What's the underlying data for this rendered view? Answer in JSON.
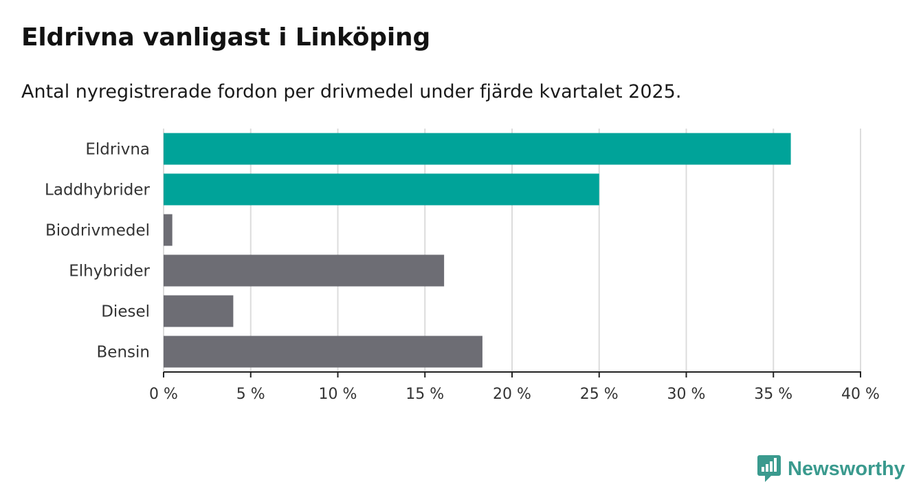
{
  "header": {
    "title": "Eldrivna vanligast i Linköping",
    "subtitle": "Antal nyregistrerade fordon per drivmedel under fjärde kvartalet 2025."
  },
  "chart_data": {
    "type": "bar",
    "orientation": "horizontal",
    "title": "Eldrivna vanligast i Linköping",
    "subtitle": "Antal nyregistrerade fordon per drivmedel under fjärde kvartalet 2025.",
    "categories": [
      "Eldrivna",
      "Laddhybrider",
      "Biodrivmedel",
      "Elhybrider",
      "Diesel",
      "Bensin"
    ],
    "values": [
      36.0,
      25.0,
      0.5,
      16.1,
      4.0,
      18.3
    ],
    "highlighted": [
      true,
      true,
      false,
      false,
      false,
      false
    ],
    "xlim": [
      0,
      40
    ],
    "xticks": [
      0,
      5,
      10,
      15,
      20,
      25,
      30,
      35,
      40
    ],
    "tick_suffix": " %",
    "xlabel": "",
    "ylabel": "",
    "grid": true,
    "colors": {
      "highlight": "#00a399",
      "default": "#6d6d74",
      "grid": "#dcdcdc",
      "axis": "#222222"
    }
  },
  "branding": {
    "logo_text": "Newsworthy",
    "logo_color": "#3a9a8e"
  }
}
